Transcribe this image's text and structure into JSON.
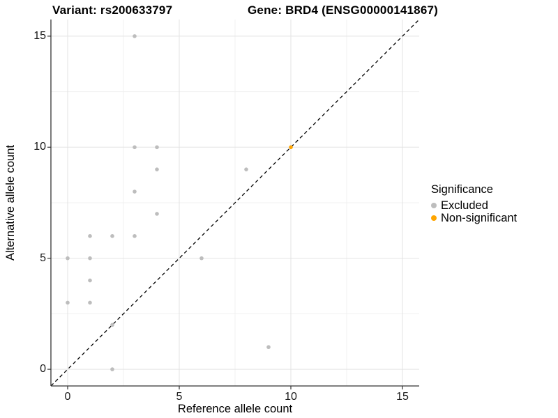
{
  "titles": {
    "variant": "Variant: rs200633797",
    "gene": "Gene: BRD4 (ENSG00000141867)"
  },
  "legend": {
    "title": "Significance",
    "position": "right"
  },
  "chart_data": {
    "type": "scatter",
    "title_left": "Variant: rs200633797",
    "title_right": "Gene: BRD4 (ENSG00000141867)",
    "xlabel": "Reference allele count",
    "ylabel": "Alternative allele count",
    "xlim": [
      -0.75,
      15.75
    ],
    "ylim": [
      -0.75,
      15.75
    ],
    "ticks": [
      0,
      5,
      10,
      15
    ],
    "minor_gridlines": [
      2.5,
      7.5,
      12.5
    ],
    "grid": "on",
    "legend_title": "Significance",
    "legend_position": "right",
    "reference_line": {
      "equation": "y = x",
      "style": "dashed",
      "color": "#000000"
    },
    "series": [
      {
        "name": "Excluded",
        "color": "#BDBDBD",
        "points": [
          [
            3,
            15
          ],
          [
            3,
            10
          ],
          [
            4,
            10
          ],
          [
            4,
            9
          ],
          [
            8,
            9
          ],
          [
            3,
            8
          ],
          [
            4,
            7
          ],
          [
            1,
            6
          ],
          [
            2,
            6
          ],
          [
            3,
            6
          ],
          [
            0,
            5
          ],
          [
            1,
            5
          ],
          [
            6,
            5
          ],
          [
            1,
            4
          ],
          [
            0,
            3
          ],
          [
            1,
            3
          ],
          [
            2,
            2
          ],
          [
            9,
            1
          ],
          [
            2,
            0
          ]
        ]
      },
      {
        "name": "Non-significant",
        "color": "#FFA500",
        "points": [
          [
            10,
            10
          ]
        ]
      }
    ]
  },
  "style_colors": {
    "major_gridline": "#E3E3E3",
    "minor_gridline": "#F0F0F0",
    "axis_line": "#333333"
  }
}
